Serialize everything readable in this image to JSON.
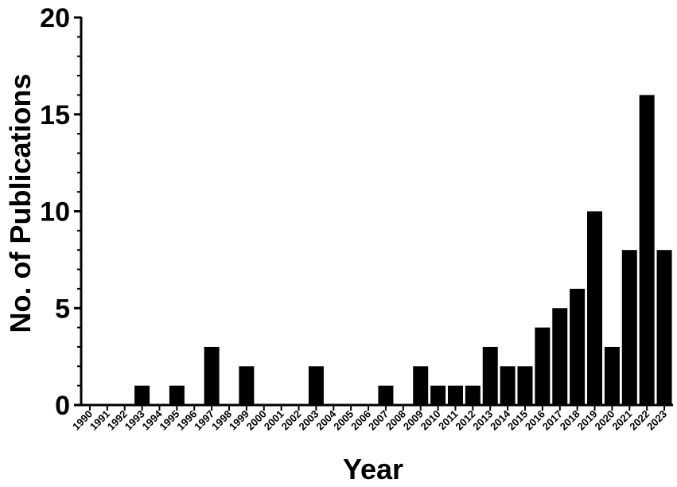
{
  "chart_data": {
    "type": "bar",
    "title": "",
    "xlabel": "Year",
    "ylabel": "No. of Publications",
    "ylim": [
      0,
      20
    ],
    "yticks": [
      0,
      5,
      10,
      15,
      20
    ],
    "grid": false,
    "legend": "none",
    "bar_color": "#000000",
    "categories": [
      "1990",
      "1991",
      "1992",
      "1993",
      "1994",
      "1995",
      "1996",
      "1997",
      "1998",
      "1999",
      "2000",
      "2001",
      "2002",
      "2003",
      "2004",
      "2005",
      "2006",
      "2007",
      "2008",
      "2009",
      "2010",
      "2011",
      "2012",
      "2013",
      "2014",
      "2015",
      "2016",
      "2017",
      "2018",
      "2019",
      "2020",
      "2021",
      "2022",
      "2023"
    ],
    "values": [
      0,
      0,
      0,
      1,
      0,
      1,
      0,
      3,
      0,
      2,
      0,
      0,
      0,
      2,
      0,
      0,
      0,
      1,
      0,
      2,
      1,
      1,
      1,
      3,
      2,
      2,
      4,
      5,
      6,
      10,
      3,
      8,
      16,
      8
    ]
  }
}
